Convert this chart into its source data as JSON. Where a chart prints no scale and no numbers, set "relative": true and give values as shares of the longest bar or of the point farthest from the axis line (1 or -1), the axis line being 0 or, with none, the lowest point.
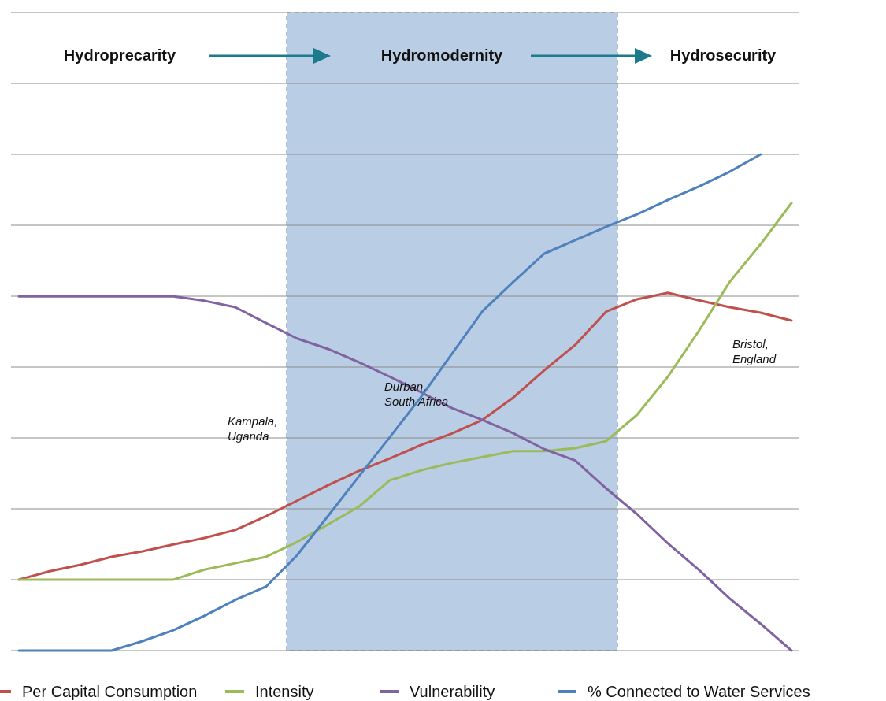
{
  "chart_data": {
    "type": "line",
    "relative": true,
    "grid": true,
    "legend": "bottom",
    "marker": "none",
    "line_style": "solid",
    "categories": [
      null,
      null,
      null,
      null,
      null,
      null,
      null,
      null,
      null,
      null,
      null,
      null,
      null,
      null,
      null,
      null,
      null,
      null,
      null,
      null,
      null,
      null,
      null,
      null,
      null,
      null
    ],
    "series": [
      {
        "name": "Per Capital Consumption",
        "color": "#c0504d",
        "values": [
          0.143,
          0.16,
          0.173,
          0.189,
          0.2,
          0.214,
          0.227,
          0.243,
          0.271,
          0.302,
          0.333,
          0.362,
          0.387,
          0.414,
          0.437,
          0.465,
          0.51,
          0.565,
          0.616,
          0.683,
          0.708,
          0.721,
          0.706,
          0.692,
          0.681,
          0.665
        ]
      },
      {
        "name": "Intensity",
        "color": "#9bbb59",
        "values": [
          0.143,
          0.143,
          0.143,
          0.143,
          0.143,
          0.143,
          0.163,
          0.176,
          0.189,
          0.219,
          0.254,
          0.29,
          0.343,
          0.363,
          0.378,
          0.39,
          0.402,
          0.402,
          0.408,
          0.422,
          0.475,
          0.552,
          0.644,
          0.743,
          0.819,
          0.902
        ]
      },
      {
        "name": "Vulnerability",
        "color": "#8064a2",
        "values": [
          0.714,
          0.714,
          0.714,
          0.714,
          0.714,
          0.714,
          0.705,
          0.692,
          0.66,
          0.629,
          0.608,
          0.581,
          0.552,
          0.521,
          0.489,
          0.465,
          0.438,
          0.406,
          0.383,
          0.327,
          0.275,
          0.216,
          0.163,
          0.105,
          0.054,
          0
        ]
      },
      {
        "name": "% Connected to Water Services",
        "color": "#4f81bd",
        "values": [
          0,
          0,
          0,
          0,
          0.019,
          0.041,
          0.07,
          0.102,
          0.129,
          0.192,
          0.271,
          0.351,
          0.43,
          0.51,
          0.597,
          0.684,
          0.743,
          0.8,
          0.827,
          0.854,
          0.879,
          0.908,
          0.935,
          0.965,
          1,
          null
        ]
      }
    ],
    "annotations": [
      "Hydroprecarity",
      "Hydromodernity",
      "Hydrosecurity",
      "Kampala,\nUganda",
      "Durban,\nSouth Africa",
      "Bristol,\nEngland"
    ]
  }
}
